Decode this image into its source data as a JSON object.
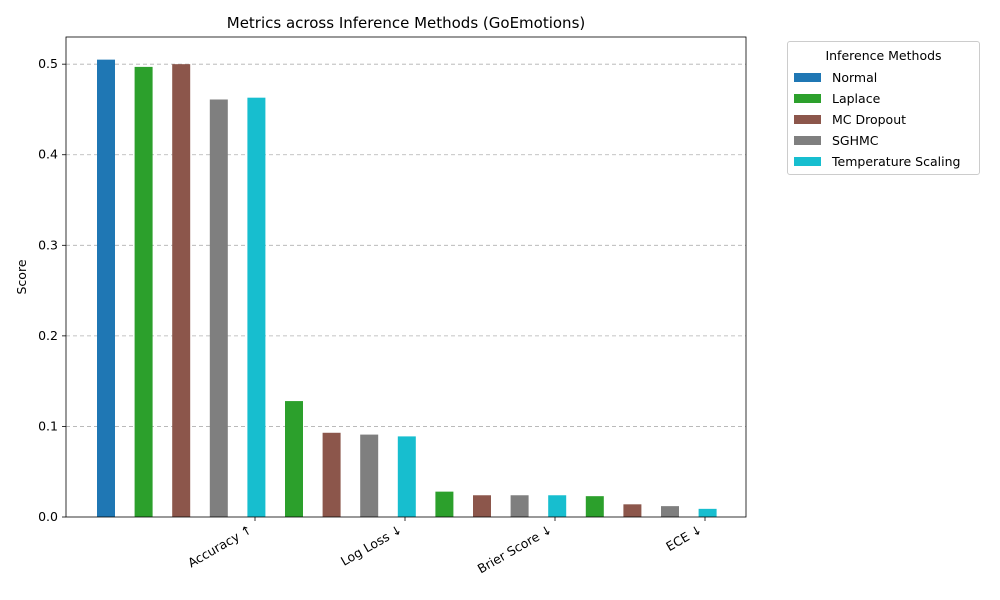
{
  "chart_data": {
    "type": "bar",
    "title": "Metrics across Inference Methods (GoEmotions)",
    "xlabel": "",
    "ylabel": "Score",
    "ylim": [
      0,
      0.53
    ],
    "yticks": [
      "0.0",
      "0.1",
      "0.2",
      "0.3",
      "0.4",
      "0.5"
    ],
    "grid": "horizontal dashed",
    "legend_title": "Inference Methods",
    "legend_position": "outside top-right",
    "categories": [
      "Accuracy ↑",
      "Log Loss ↓",
      "Brier Score ↓",
      "ECE ↓"
    ],
    "series": [
      {
        "name": "Normal",
        "color": "#1f77b4",
        "values": [
          0.505,
          null,
          null,
          null
        ]
      },
      {
        "name": "Laplace",
        "color": "#2ca02c",
        "values": [
          0.497,
          0.128,
          0.028,
          0.023
        ]
      },
      {
        "name": "MC Dropout",
        "color": "#8c564b",
        "values": [
          0.5,
          0.093,
          0.024,
          0.014
        ]
      },
      {
        "name": "SGHMC",
        "color": "#7f7f7f",
        "values": [
          0.461,
          0.091,
          0.024,
          0.012
        ]
      },
      {
        "name": "Temperature Scaling",
        "color": "#17becf",
        "values": [
          0.463,
          0.089,
          0.024,
          0.009
        ]
      }
    ]
  }
}
